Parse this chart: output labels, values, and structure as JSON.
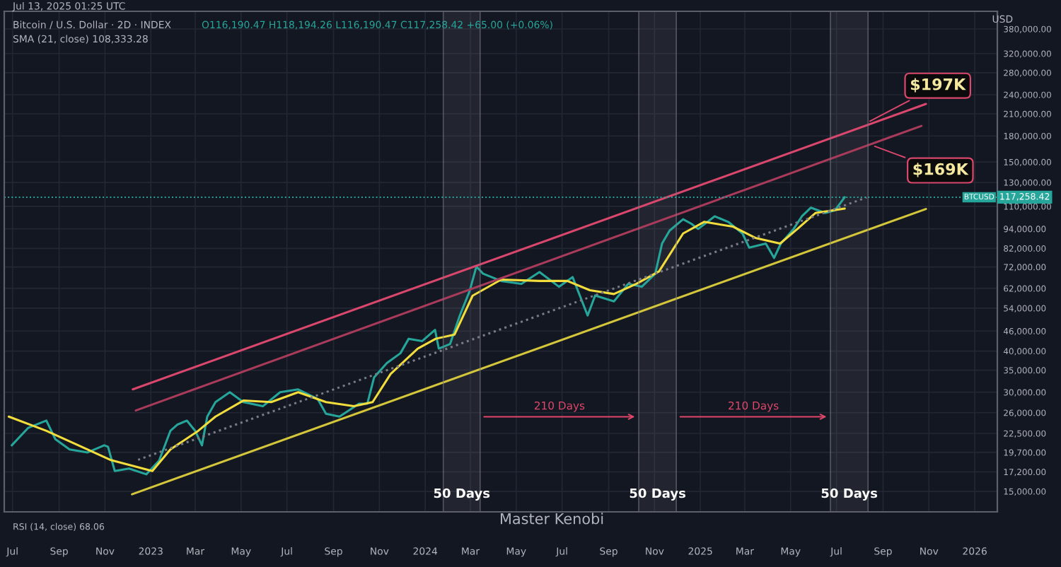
{
  "chart_data": {
    "type": "line",
    "title": "Bitcoin / U.S. Dollar · 2D · INDEX",
    "subtitle": "O116,190.47 H118,194.26 L116,190.47 C117,258.42 +65.00 (+0.06%)",
    "xlim": [
      "2022-06-20",
      "2026-01-31"
    ],
    "xticks": [
      {
        "value": "2022-07-01",
        "label": "Jul"
      },
      {
        "value": "2022-09-01",
        "label": "Sep"
      },
      {
        "value": "2022-11-01",
        "label": "Nov"
      },
      {
        "value": "2023-01-01",
        "label": "2023"
      },
      {
        "value": "2023-03-01",
        "label": "Mar"
      },
      {
        "value": "2023-05-01",
        "label": "May"
      },
      {
        "value": "2023-07-01",
        "label": "Jul"
      },
      {
        "value": "2023-09-01",
        "label": "Sep"
      },
      {
        "value": "2023-11-01",
        "label": "Nov"
      },
      {
        "value": "2024-01-01",
        "label": "2024"
      },
      {
        "value": "2024-03-01",
        "label": "Mar"
      },
      {
        "value": "2024-05-01",
        "label": "May"
      },
      {
        "value": "2024-07-01",
        "label": "Jul"
      },
      {
        "value": "2024-09-01",
        "label": "Sep"
      },
      {
        "value": "2024-11-01",
        "label": "Nov"
      },
      {
        "value": "2025-01-01",
        "label": "2025"
      },
      {
        "value": "2025-03-01",
        "label": "Mar"
      },
      {
        "value": "2025-05-01",
        "label": "May"
      },
      {
        "value": "2025-07-01",
        "label": "Jul"
      },
      {
        "value": "2025-09-01",
        "label": "Sep"
      },
      {
        "value": "2025-11-01",
        "label": "Nov"
      },
      {
        "value": "2026-01-01",
        "label": "2026"
      }
    ],
    "log": true,
    "ylim": [
      13000,
      430000
    ],
    "yticks": [
      {
        "value": 380000,
        "label": "380,000.00"
      },
      {
        "value": 320000,
        "label": "320,000.00"
      },
      {
        "value": 280000,
        "label": "280,000.00"
      },
      {
        "value": 240000,
        "label": "240,000.00"
      },
      {
        "value": 210000,
        "label": "210,000.00"
      },
      {
        "value": 180000,
        "label": "180,000.00"
      },
      {
        "value": 150000,
        "label": "150,000.00"
      },
      {
        "value": 130000,
        "label": "130,000.00"
      },
      {
        "value": 110000,
        "label": "110,000.00"
      },
      {
        "value": 94000,
        "label": "94,000.00"
      },
      {
        "value": 82000,
        "label": "82,000.00"
      },
      {
        "value": 72000,
        "label": "72,000.00"
      },
      {
        "value": 62000,
        "label": "62,000.00"
      },
      {
        "value": 54000,
        "label": "54,000.00"
      },
      {
        "value": 46000,
        "label": "46,000.00"
      },
      {
        "value": 40000,
        "label": "40,000.00"
      },
      {
        "value": 35000,
        "label": "35,000.00"
      },
      {
        "value": 30000,
        "label": "30,000.00"
      },
      {
        "value": 26000,
        "label": "26,000.00"
      },
      {
        "value": 22500,
        "label": "22,500.00"
      },
      {
        "value": 19700,
        "label": "19,700.00"
      },
      {
        "value": 17200,
        "label": "17,200.00"
      },
      {
        "value": 15000,
        "label": "15,000.00"
      }
    ],
    "grid": true,
    "legend": false,
    "series": [
      {
        "color": "#26a69a",
        "x": [
          "2022-06-30",
          "2022-07-22",
          "2022-08-15",
          "2022-08-27",
          "2022-09-15",
          "2022-10-09",
          "2022-10-31",
          "2022-11-05",
          "2022-11-14",
          "2022-12-03",
          "2022-12-26",
          "2023-01-12",
          "2023-01-27",
          "2023-02-05",
          "2023-02-18",
          "2023-03-01",
          "2023-03-10",
          "2023-03-17",
          "2023-03-28",
          "2023-04-16",
          "2023-05-04",
          "2023-05-30",
          "2023-06-22",
          "2023-07-16",
          "2023-08-11",
          "2023-08-22",
          "2023-09-09",
          "2023-10-05",
          "2023-10-16",
          "2023-10-25",
          "2023-11-11",
          "2023-11-29",
          "2023-12-10",
          "2023-12-28",
          "2024-01-14",
          "2024-01-19",
          "2024-02-03",
          "2024-02-16",
          "2024-02-29",
          "2024-03-09",
          "2024-03-18",
          "2024-04-11",
          "2024-05-08",
          "2024-06-01",
          "2024-06-27",
          "2024-07-15",
          "2024-08-04",
          "2024-08-14",
          "2024-09-08",
          "2024-09-27",
          "2024-10-15",
          "2024-11-02",
          "2024-11-11",
          "2024-11-21",
          "2024-12-09",
          "2024-12-20",
          "2024-12-29",
          "2025-01-20",
          "2025-02-07",
          "2025-02-26",
          "2025-03-07",
          "2025-03-29",
          "2025-04-09",
          "2025-04-18",
          "2025-05-05",
          "2025-05-16",
          "2025-05-28",
          "2025-06-16",
          "2025-06-29",
          "2025-07-12"
        ],
        "values": [
          20700,
          23400,
          24600,
          21600,
          20100,
          19700,
          20700,
          20500,
          17300,
          17600,
          16900,
          18600,
          22900,
          23900,
          24600,
          22900,
          20700,
          25300,
          28000,
          30000,
          28000,
          27200,
          30000,
          30600,
          28600,
          25800,
          25300,
          27700,
          27700,
          33300,
          36800,
          39400,
          43600,
          42900,
          46400,
          40700,
          42000,
          51300,
          60800,
          72200,
          68700,
          65300,
          64000,
          69500,
          62700,
          67100,
          51300,
          59000,
          56600,
          64000,
          62700,
          68700,
          84800,
          92800,
          100500,
          97400,
          93900,
          102600,
          98700,
          91000,
          82400,
          84800,
          76700,
          84800,
          93900,
          102600,
          109000,
          105000,
          107000,
          117258
        ]
      },
      {
        "color": "#f2dd3c",
        "x": [
          "2022-06-26",
          "2022-08-15",
          "2022-10-09",
          "2022-11-08",
          "2023-01-03",
          "2023-01-27",
          "2023-03-05",
          "2023-03-28",
          "2023-05-04",
          "2023-06-10",
          "2023-07-16",
          "2023-08-22",
          "2023-09-28",
          "2023-10-23",
          "2023-11-16",
          "2023-12-22",
          "2024-01-15",
          "2024-02-09",
          "2024-03-04",
          "2024-04-11",
          "2024-06-01",
          "2024-07-08",
          "2024-08-07",
          "2024-09-08",
          "2024-10-08",
          "2024-11-07",
          "2024-12-09",
          "2025-01-06",
          "2025-02-13",
          "2025-03-16",
          "2025-04-17",
          "2025-05-10",
          "2025-06-03",
          "2025-07-12"
        ],
        "values": [
          25300,
          22900,
          20100,
          18700,
          17300,
          20100,
          22900,
          25300,
          28300,
          28000,
          30000,
          28000,
          27200,
          28000,
          34100,
          40700,
          43600,
          44900,
          58900,
          65900,
          65300,
          65300,
          61200,
          59600,
          64000,
          69800,
          91000,
          98700,
          95500,
          88100,
          84800,
          93900,
          105000,
          108333
        ]
      },
      {
        "type": "line",
        "color": "#d9476c",
        "x": [
          "2022-12-08",
          "2025-10-28"
        ],
        "values": [
          30600,
          225000
        ]
      },
      {
        "type": "line",
        "color": "#a83a5a",
        "x": [
          "2022-12-12",
          "2025-10-22"
        ],
        "values": [
          26400,
          193000
        ]
      },
      {
        "type": "line",
        "color": "#787b86",
        "line_style": "dotted",
        "x": [
          "2022-12-15",
          "2025-08-10"
        ],
        "values": [
          18700,
          117000
        ]
      },
      {
        "type": "line",
        "color": "#d4c63a",
        "x": [
          "2022-12-07",
          "2025-10-28"
        ],
        "values": [
          14700,
          108000
        ]
      }
    ],
    "bands": [
      {
        "axis": "x",
        "from": "2024-01-25",
        "to": "2024-03-14",
        "label": "50 Days",
        "color": "#787b86"
      },
      {
        "axis": "x",
        "from": "2024-10-11",
        "to": "2024-11-30",
        "label": "50 Days",
        "color": "#787b86"
      },
      {
        "axis": "x",
        "from": "2025-06-23",
        "to": "2025-08-12",
        "label": "50 Days",
        "color": "#787b86"
      }
    ],
    "ref_lines": [
      {
        "axis": "y",
        "value": 117258.42,
        "label": "117,258.42",
        "color": "#26a69a",
        "line_style": "dotted"
      }
    ],
    "annotations": [
      "Jul 13, 2025 01:25 UTC",
      "SMA (21, close) 108,333.28",
      "USD",
      "RSI (14, close) 68.06",
      "Master Kenobi",
      "BTCUSD",
      "210 Days",
      "210 Days",
      {
        "text": "$197K",
        "x": "2025-08-10",
        "y": 197000
      },
      {
        "text": "$169K",
        "x": "2025-08-16",
        "y": 169000
      }
    ]
  }
}
